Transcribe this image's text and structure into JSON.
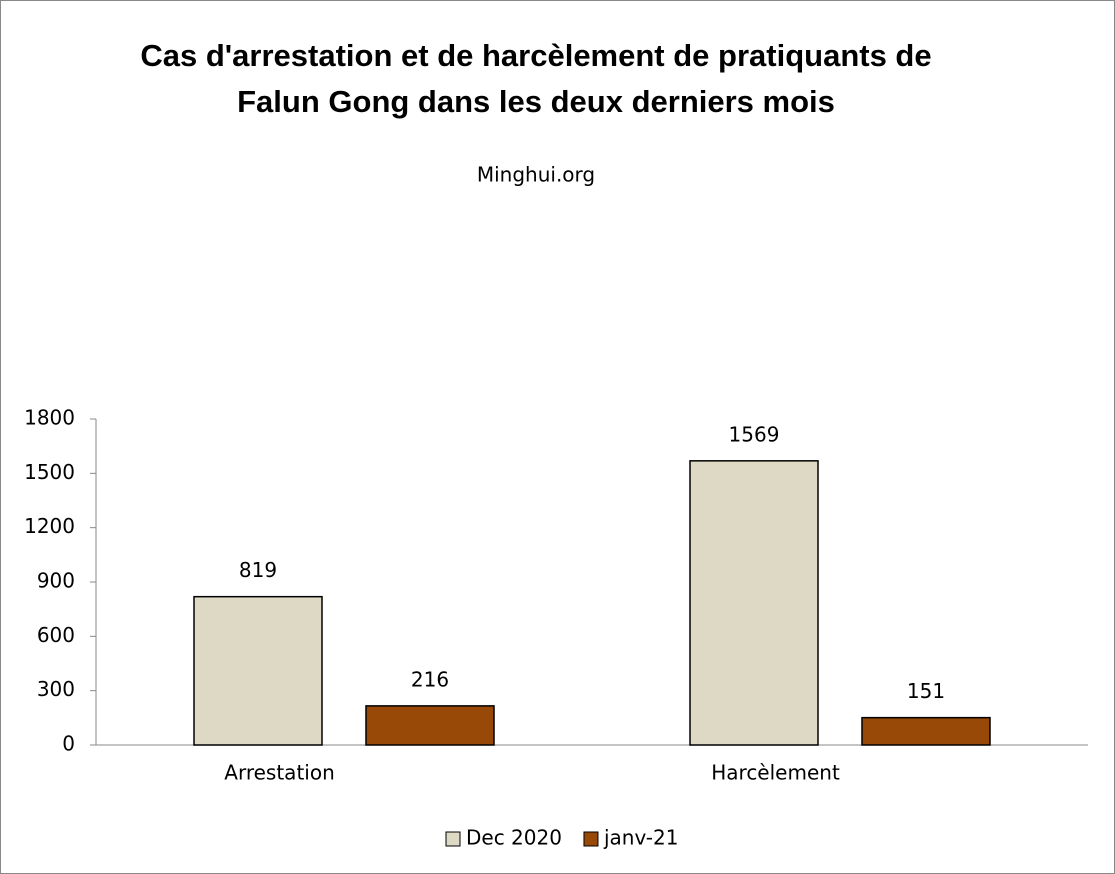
{
  "chart_data": {
    "type": "bar",
    "title": "Cas d'arrestation et de harcèlement de pratiquants de Falun Gong dans les deux derniers mois",
    "subtitle": "Minghui.org",
    "categories": [
      "Arrestation",
      "Harcèlement"
    ],
    "series": [
      {
        "name": "Dec 2020",
        "color": "#ddd9c4",
        "values": [
          819,
          1569
        ]
      },
      {
        "name": "janv-21",
        "color": "#984807",
        "values": [
          216,
          151
        ]
      }
    ],
    "ylim": [
      0,
      1800
    ],
    "yticks": [
      0,
      300,
      600,
      900,
      1200,
      1500,
      1800
    ],
    "grid": false,
    "legend": "bottom"
  }
}
